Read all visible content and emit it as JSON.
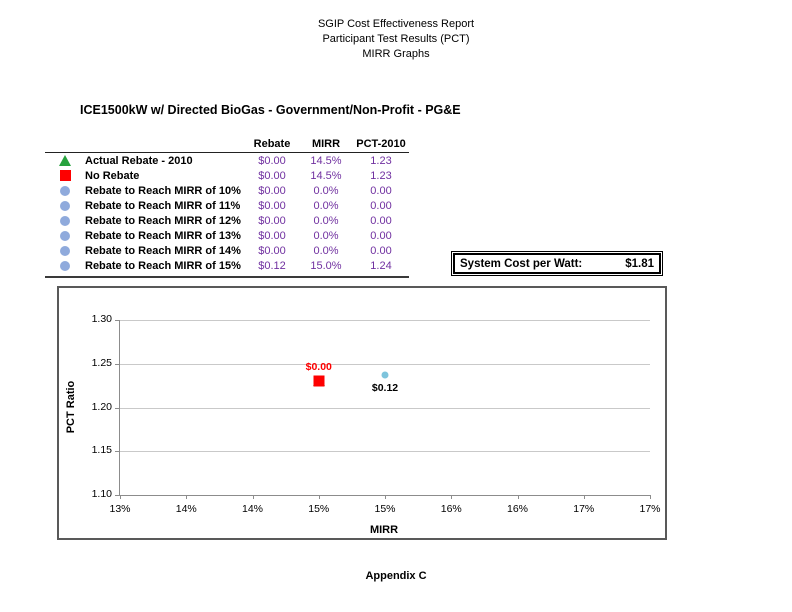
{
  "header": {
    "lines": [
      "SGIP Cost Effectiveness Report",
      "Participant Test Results (PCT)",
      "MIRR Graphs"
    ]
  },
  "section_title": "ICE1500kW w/ Directed BioGas - Government/Non-Profit - PG&E",
  "table": {
    "columns": [
      "Rebate",
      "MIRR",
      "PCT-2010"
    ],
    "rows": [
      {
        "marker": "green-triangle",
        "label": "Actual Rebate - 2010",
        "rebate": "$0.00",
        "mirr": "14.5%",
        "pct": "1.23"
      },
      {
        "marker": "red-square",
        "label": "No Rebate",
        "rebate": "$0.00",
        "mirr": "14.5%",
        "pct": "1.23"
      },
      {
        "marker": "blue-circle",
        "label": "Rebate to Reach MIRR of 10%",
        "rebate": "$0.00",
        "mirr": "0.0%",
        "pct": "0.00"
      },
      {
        "marker": "blue-circle",
        "label": "Rebate to Reach MIRR of 11%",
        "rebate": "$0.00",
        "mirr": "0.0%",
        "pct": "0.00"
      },
      {
        "marker": "blue-circle",
        "label": "Rebate to Reach MIRR of 12%",
        "rebate": "$0.00",
        "mirr": "0.0%",
        "pct": "0.00"
      },
      {
        "marker": "blue-circle",
        "label": "Rebate to Reach MIRR of 13%",
        "rebate": "$0.00",
        "mirr": "0.0%",
        "pct": "0.00"
      },
      {
        "marker": "blue-circle",
        "label": "Rebate to Reach MIRR of 14%",
        "rebate": "$0.00",
        "mirr": "0.0%",
        "pct": "0.00"
      },
      {
        "marker": "blue-circle",
        "label": "Rebate to Reach MIRR of 15%",
        "rebate": "$0.12",
        "mirr": "15.0%",
        "pct": "1.24"
      }
    ]
  },
  "system_cost": {
    "label": "System Cost per Watt:",
    "value": "$1.81"
  },
  "chart_data": {
    "type": "scatter",
    "title": "",
    "xlabel": "MIRR",
    "ylabel": "PCT Ratio",
    "xlim": [
      13,
      17
    ],
    "ylim": [
      1.1,
      1.3
    ],
    "grid": true,
    "x_tick_labels": [
      "13%",
      "14%",
      "14%",
      "15%",
      "15%",
      "16%",
      "16%",
      "17%",
      "17%"
    ],
    "y_tick_labels": [
      "1.30",
      "1.25",
      "1.20",
      "1.15",
      "1.10"
    ],
    "series": [
      {
        "name": "Actual Rebate - 2010",
        "marker": "triangle",
        "color": "#27A23D",
        "points": [
          {
            "x": 14.5,
            "y": 1.23
          }
        ]
      },
      {
        "name": "No Rebate",
        "marker": "square",
        "color": "#FE0000",
        "points": [
          {
            "x": 14.5,
            "y": 1.23,
            "label": "$0.00",
            "label_color": "#FE0000",
            "label_pos": "above"
          }
        ]
      },
      {
        "name": "Rebate to Reach MIRR of 15%",
        "marker": "circle",
        "color": "#7EC4DC",
        "points": [
          {
            "x": 15.0,
            "y": 1.237,
            "label": "$0.12",
            "label_color": "#000000",
            "label_pos": "below"
          }
        ]
      }
    ]
  },
  "footer": "Appendix C",
  "colors": {
    "purple": "#7030A0",
    "green": "#27A23D",
    "red": "#FE0000",
    "table_circle": "#8FAADC",
    "chart_circle": "#7EC4DC",
    "chart_border": "#595959",
    "gridline": "#C9C9C9"
  }
}
